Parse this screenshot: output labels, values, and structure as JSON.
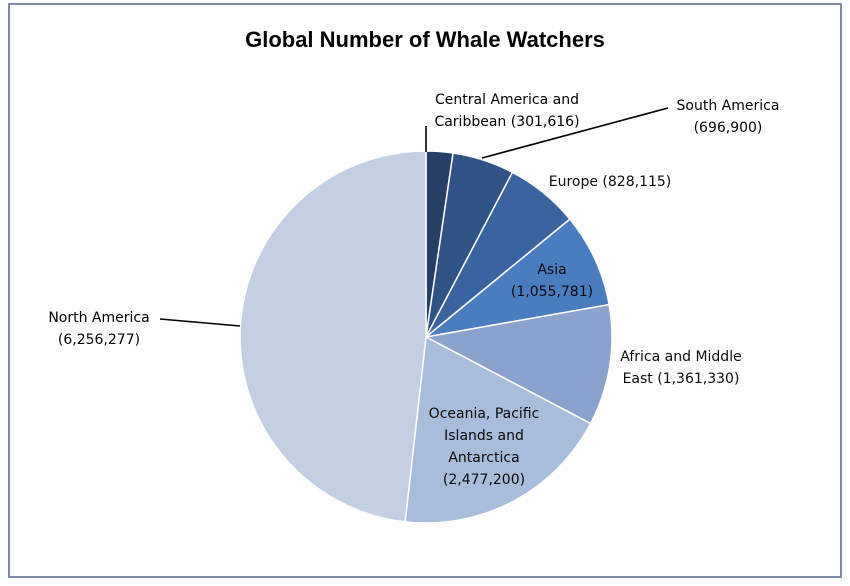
{
  "chart_data": {
    "type": "pie",
    "title": "Global Number of Whale Watchers",
    "slices": [
      {
        "category": "Central America and Caribbean",
        "value": 301616,
        "label_lines": [
          "Central America and",
          "Caribbean (301,616)"
        ],
        "color": "#253f65"
      },
      {
        "category": "South America",
        "value": 696900,
        "label_lines": [
          "South America",
          "(696,900)"
        ],
        "color": "#2f5386"
      },
      {
        "category": "Europe",
        "value": 828115,
        "label_lines": [
          "Europe (828,115)"
        ],
        "color": "#3a64a0"
      },
      {
        "category": "Asia",
        "value": 1055781,
        "label_lines": [
          "Asia",
          "(1,055,781)"
        ],
        "color": "#4a7cc0"
      },
      {
        "category": "Africa and Middle East",
        "value": 1361330,
        "label_lines": [
          "Africa and Middle",
          "East (1,361,330)"
        ],
        "color": "#8aa3cc"
      },
      {
        "category": "Oceania, Pacific Islands and Antarctica",
        "value": 2477200,
        "label_lines": [
          "Oceania, Pacific",
          "Islands and",
          "Antarctica",
          "(2,477,200)"
        ],
        "color": "#a8bcdc"
      },
      {
        "category": "North America",
        "value": 6256277,
        "label_lines": [
          "North America",
          "(6,256,277)"
        ],
        "color": "#c3d0e3"
      }
    ],
    "start": "12 o'clock",
    "direction": "clockwise",
    "slice_border_color": "#ffffff",
    "frame_color": "#7f8ea8",
    "legend": "none"
  }
}
